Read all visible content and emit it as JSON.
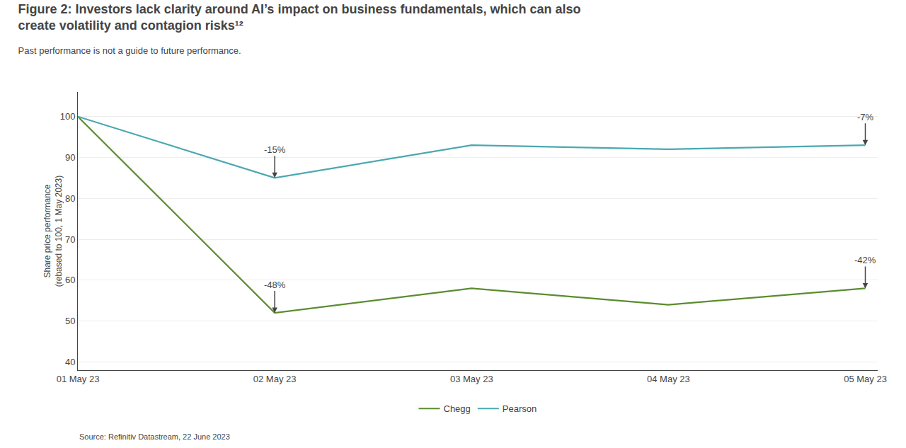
{
  "chart_data": {
    "type": "line",
    "title": "Figure 2: Investors lack clarity around AI’s impact on business fundamentals, which can also\ncreate volatility and contagion risks¹²",
    "subtitle": "Past performance is not a guide to future performance.",
    "source": "Source: Refinitiv Datastream, 22 June 2023",
    "categories": [
      "01 May 23",
      "02 May 23",
      "03 May 23",
      "04 May 23",
      "05 May 23"
    ],
    "series": [
      {
        "name": "Chegg",
        "color": "#5a8c2f",
        "values": [
          100,
          52,
          58,
          54,
          58
        ]
      },
      {
        "name": "Pearson",
        "color": "#4aa8b0",
        "values": [
          100,
          85,
          93,
          92,
          93
        ]
      }
    ],
    "ylabel": "Share price performance\n(rebased to 100, 1 May 2023)",
    "ylim": [
      38,
      106
    ],
    "yticks": [
      40,
      50,
      60,
      70,
      80,
      90,
      100
    ],
    "grid": true,
    "legend": "bottom",
    "annotations": [
      {
        "text": "-15%",
        "x": "02 May 23",
        "series": "Pearson"
      },
      {
        "text": "-48%",
        "x": "02 May 23",
        "series": "Chegg"
      },
      {
        "text": "-7%",
        "x": "05 May 23",
        "series": "Pearson"
      },
      {
        "text": "-42%",
        "x": "05 May 23",
        "series": "Chegg"
      }
    ]
  }
}
